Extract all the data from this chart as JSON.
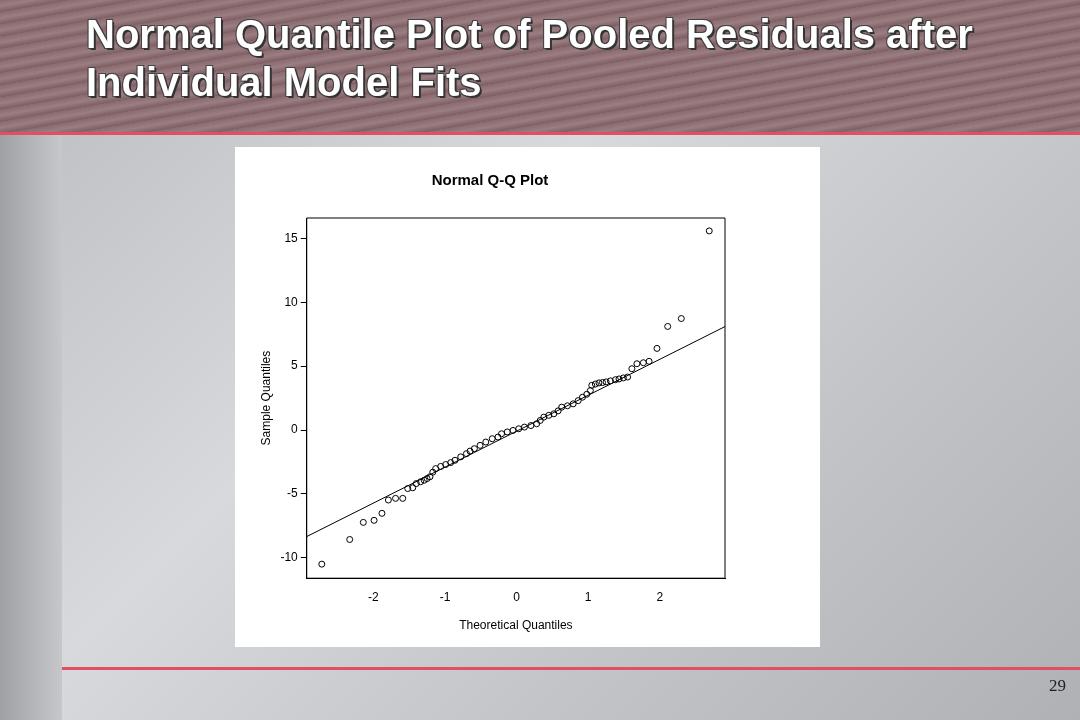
{
  "chart_data": {
    "type": "scatter",
    "title": "Normal Quantile Plot of  Pooled Residuals after Individual Model Fits",
    "subtitle": "Normal Q-Q Plot",
    "xlabel": "Theoretical Quantiles",
    "ylabel": "Sample Quantiles",
    "annotations": [
      "29"
    ],
    "xlim": [
      -2.93,
      2.91
    ],
    "xticks": [
      -2,
      -1,
      0,
      1,
      2
    ],
    "ylim": [
      -11.6,
      16.6
    ],
    "yticks": [
      -10,
      -5,
      0,
      5,
      10,
      15
    ],
    "grid": false,
    "legend": false,
    "marker": "circle",
    "series": [
      {
        "type": "scatter",
        "color": "#000000",
        "x": [
          -2.72,
          -2.33,
          -2.14,
          -1.99,
          -1.88,
          -1.79,
          -1.69,
          -1.59,
          -1.52,
          -1.45,
          -1.4,
          -1.34,
          -1.29,
          -1.25,
          -1.21,
          -1.17,
          -1.13,
          -1.06,
          -0.99,
          -0.92,
          -0.86,
          -0.78,
          -0.7,
          -0.65,
          -0.59,
          -0.51,
          -0.43,
          -0.34,
          -0.26,
          -0.21,
          -0.13,
          -0.05,
          0.03,
          0.11,
          0.2,
          0.28,
          0.33,
          0.38,
          0.45,
          0.52,
          0.58,
          0.63,
          0.71,
          0.79,
          0.86,
          0.92,
          0.98,
          1.03,
          1.05,
          1.1,
          1.15,
          1.2,
          1.25,
          1.31,
          1.38,
          1.43,
          1.49,
          1.55,
          1.61,
          1.68,
          1.77,
          1.85,
          1.96,
          2.11,
          2.3,
          2.69
        ],
        "values": [
          -10.5,
          -8.57,
          -7.23,
          -7.07,
          -6.52,
          -5.48,
          -5.35,
          -5.35,
          -4.58,
          -4.52,
          -4.19,
          -4.05,
          -3.93,
          -3.8,
          -3.66,
          -3.3,
          -3.02,
          -2.85,
          -2.7,
          -2.55,
          -2.37,
          -2.1,
          -1.85,
          -1.65,
          -1.46,
          -1.2,
          -0.94,
          -0.68,
          -0.55,
          -0.29,
          -0.15,
          -0.03,
          0.1,
          0.23,
          0.35,
          0.49,
          0.75,
          1.01,
          1.15,
          1.27,
          1.5,
          1.79,
          1.9,
          2.05,
          2.3,
          2.57,
          2.8,
          3.09,
          3.5,
          3.6,
          3.69,
          3.72,
          3.77,
          3.85,
          3.94,
          4.0,
          4.08,
          4.15,
          4.8,
          5.19,
          5.27,
          5.38,
          6.39,
          8.11,
          8.73,
          15.59
        ]
      },
      {
        "type": "line",
        "color": "#000000",
        "marker": "none",
        "x": [
          -2.93,
          2.91
        ],
        "values": [
          -8.34,
          8.1
        ]
      }
    ]
  }
}
